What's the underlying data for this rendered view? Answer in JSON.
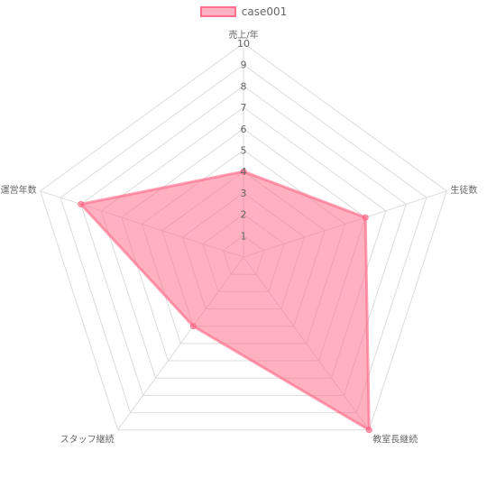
{
  "chart_data": {
    "type": "radar",
    "categories": [
      "売上/年",
      "生徒数",
      "教室長継続",
      "スタッフ継続",
      "運営年数"
    ],
    "series": [
      {
        "name": "case001",
        "values": [
          4,
          6,
          10,
          4,
          8
        ],
        "color": "#ff6384"
      }
    ],
    "rlim": [
      0,
      10
    ],
    "ticks": [
      1,
      2,
      3,
      4,
      5,
      6,
      7,
      8,
      9,
      10
    ],
    "grid": true,
    "legend": "top"
  }
}
